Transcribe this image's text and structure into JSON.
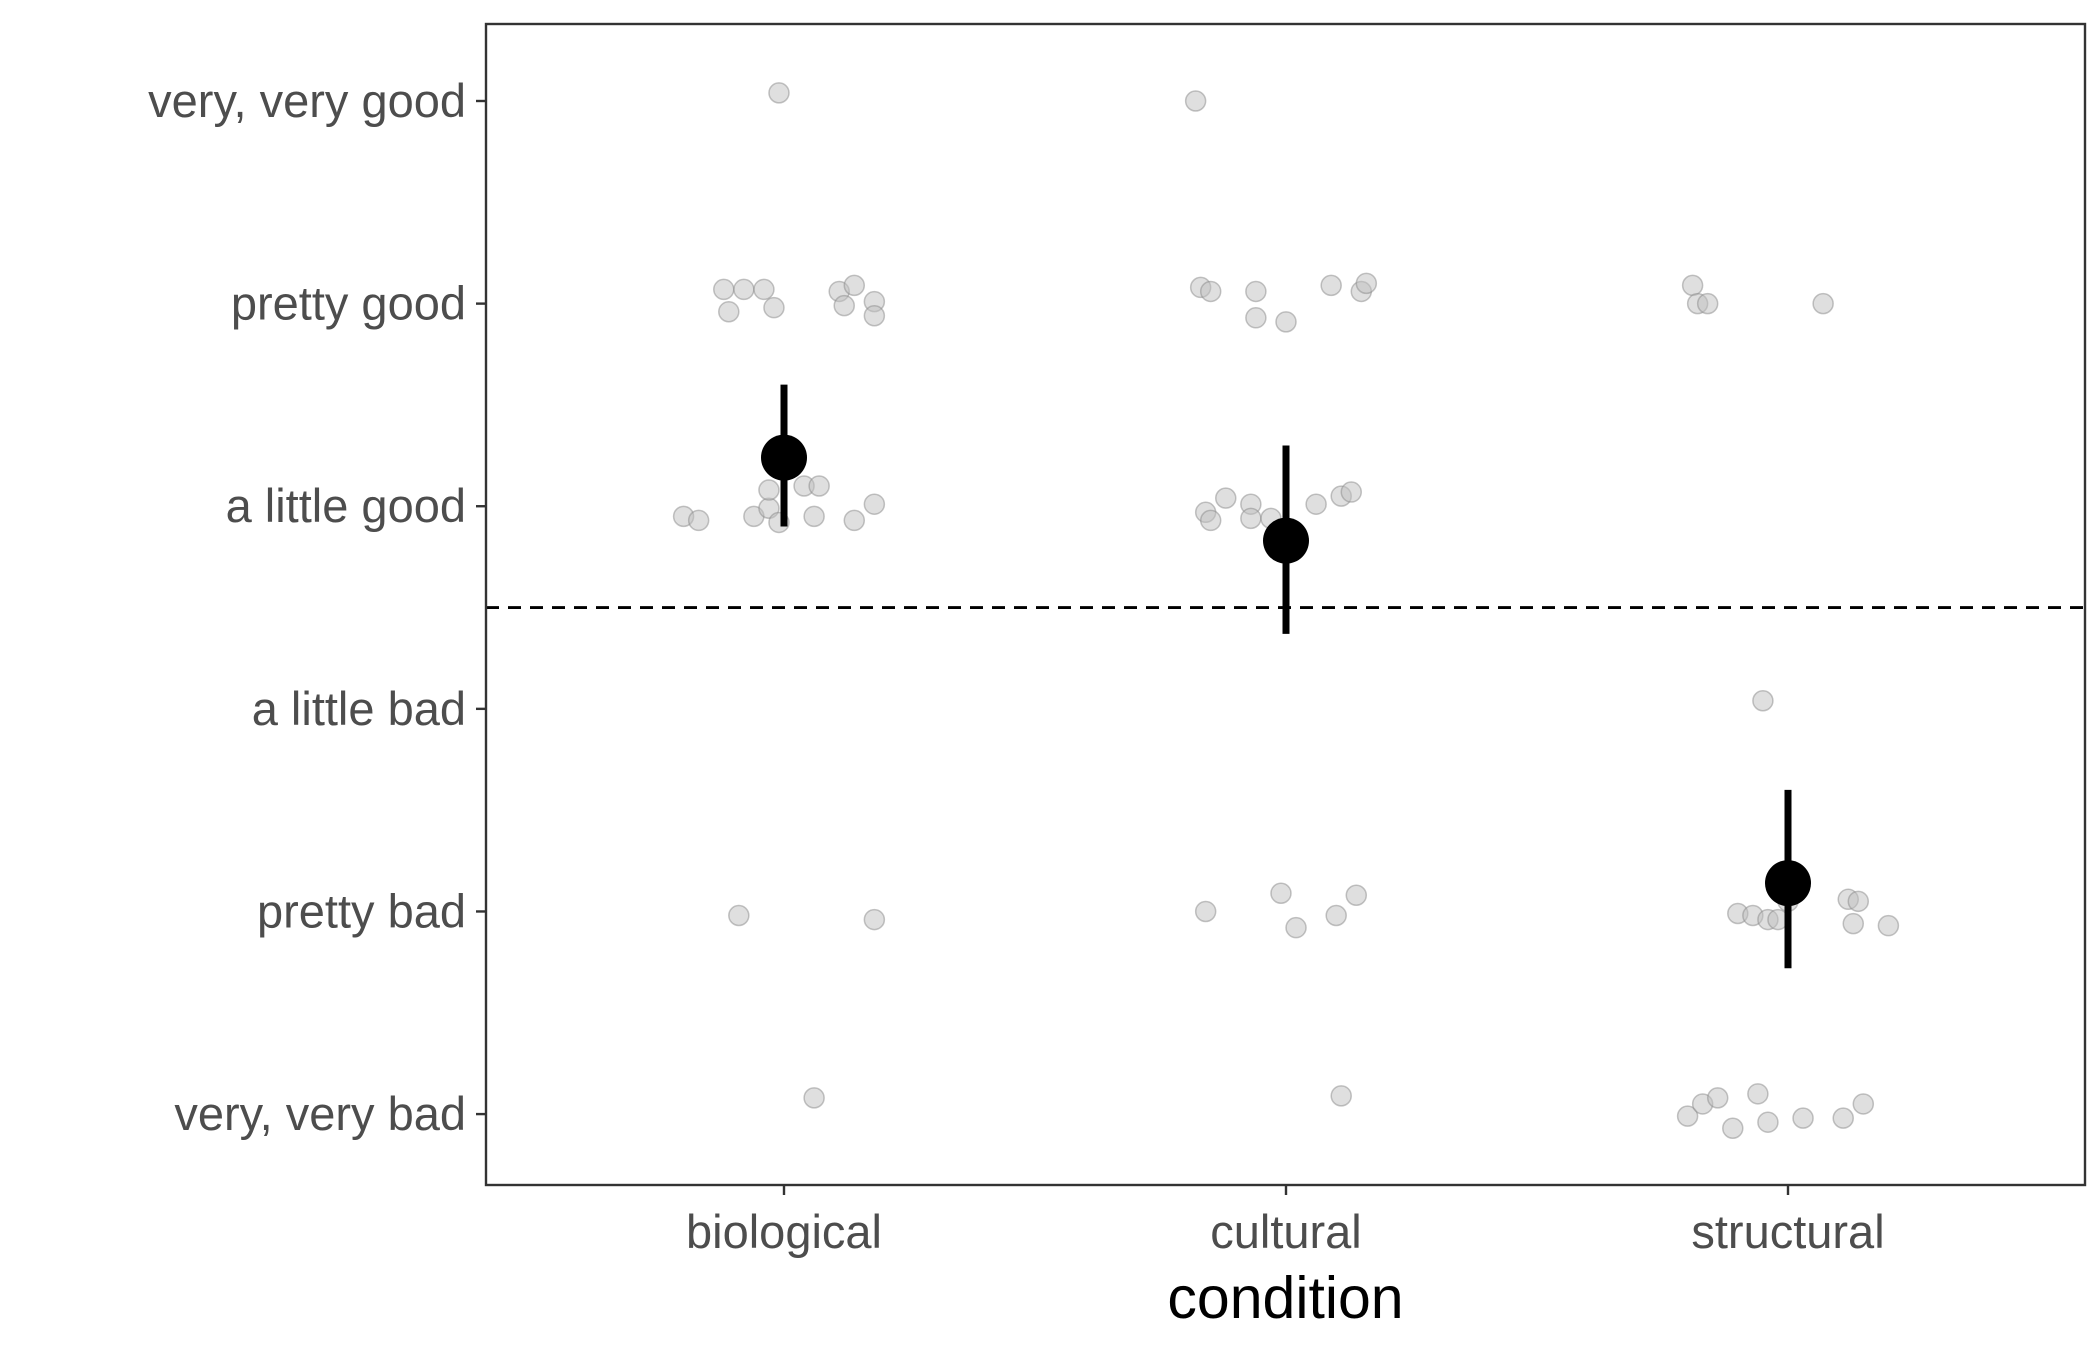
{
  "chart_data": {
    "type": "scatter",
    "title": "",
    "xlabel": "condition",
    "ylabel": "",
    "categories": [
      "biological",
      "cultural",
      "structural"
    ],
    "y_ticks": [
      {
        "value": 1,
        "label": "very, very bad"
      },
      {
        "value": 2,
        "label": "pretty bad"
      },
      {
        "value": 3,
        "label": "a little bad"
      },
      {
        "value": 4,
        "label": "a little good"
      },
      {
        "value": 5,
        "label": "pretty good"
      },
      {
        "value": 6,
        "label": "very, very good"
      }
    ],
    "ylim": [
      0.65,
      6.38
    ],
    "reference_line": {
      "y": 3.5,
      "style": "dashed"
    },
    "grid": false,
    "points": [
      {
        "category": "biological",
        "jitter": -0.01,
        "y": 6.04
      },
      {
        "category": "biological",
        "jitter": -0.12,
        "y": 5.07
      },
      {
        "category": "biological",
        "jitter": -0.08,
        "y": 5.07
      },
      {
        "category": "biological",
        "jitter": -0.04,
        "y": 5.07
      },
      {
        "category": "biological",
        "jitter": -0.11,
        "y": 4.96
      },
      {
        "category": "biological",
        "jitter": -0.02,
        "y": 4.98
      },
      {
        "category": "biological",
        "jitter": 0.11,
        "y": 5.06
      },
      {
        "category": "biological",
        "jitter": 0.14,
        "y": 5.09
      },
      {
        "category": "biological",
        "jitter": 0.12,
        "y": 4.99
      },
      {
        "category": "biological",
        "jitter": 0.18,
        "y": 5.01
      },
      {
        "category": "biological",
        "jitter": 0.18,
        "y": 4.94
      },
      {
        "category": "biological",
        "jitter": -0.2,
        "y": 3.95
      },
      {
        "category": "biological",
        "jitter": -0.17,
        "y": 3.93
      },
      {
        "category": "biological",
        "jitter": -0.06,
        "y": 3.95
      },
      {
        "category": "biological",
        "jitter": -0.03,
        "y": 3.99
      },
      {
        "category": "biological",
        "jitter": -0.03,
        "y": 4.08
      },
      {
        "category": "biological",
        "jitter": -0.01,
        "y": 3.92
      },
      {
        "category": "biological",
        "jitter": 0.04,
        "y": 4.1
      },
      {
        "category": "biological",
        "jitter": 0.07,
        "y": 4.1
      },
      {
        "category": "biological",
        "jitter": 0.06,
        "y": 3.95
      },
      {
        "category": "biological",
        "jitter": 0.14,
        "y": 3.93
      },
      {
        "category": "biological",
        "jitter": 0.18,
        "y": 4.01
      },
      {
        "category": "biological",
        "jitter": -0.09,
        "y": 1.98
      },
      {
        "category": "biological",
        "jitter": 0.18,
        "y": 1.96
      },
      {
        "category": "biological",
        "jitter": 0.06,
        "y": 1.08
      },
      {
        "category": "cultural",
        "jitter": -0.18,
        "y": 6.0
      },
      {
        "category": "cultural",
        "jitter": -0.17,
        "y": 5.08
      },
      {
        "category": "cultural",
        "jitter": -0.15,
        "y": 5.06
      },
      {
        "category": "cultural",
        "jitter": -0.06,
        "y": 5.06
      },
      {
        "category": "cultural",
        "jitter": -0.06,
        "y": 4.93
      },
      {
        "category": "cultural",
        "jitter": 0.0,
        "y": 4.91
      },
      {
        "category": "cultural",
        "jitter": 0.09,
        "y": 5.09
      },
      {
        "category": "cultural",
        "jitter": 0.15,
        "y": 5.06
      },
      {
        "category": "cultural",
        "jitter": 0.16,
        "y": 5.1
      },
      {
        "category": "cultural",
        "jitter": -0.16,
        "y": 3.97
      },
      {
        "category": "cultural",
        "jitter": -0.15,
        "y": 3.93
      },
      {
        "category": "cultural",
        "jitter": -0.12,
        "y": 4.04
      },
      {
        "category": "cultural",
        "jitter": -0.07,
        "y": 4.01
      },
      {
        "category": "cultural",
        "jitter": -0.07,
        "y": 3.94
      },
      {
        "category": "cultural",
        "jitter": -0.03,
        "y": 3.94
      },
      {
        "category": "cultural",
        "jitter": 0.06,
        "y": 4.01
      },
      {
        "category": "cultural",
        "jitter": 0.11,
        "y": 4.05
      },
      {
        "category": "cultural",
        "jitter": 0.13,
        "y": 4.07
      },
      {
        "category": "cultural",
        "jitter": -0.16,
        "y": 2.0
      },
      {
        "category": "cultural",
        "jitter": -0.01,
        "y": 2.09
      },
      {
        "category": "cultural",
        "jitter": 0.02,
        "y": 1.92
      },
      {
        "category": "cultural",
        "jitter": 0.1,
        "y": 1.98
      },
      {
        "category": "cultural",
        "jitter": 0.14,
        "y": 2.08
      },
      {
        "category": "cultural",
        "jitter": 0.11,
        "y": 1.09
      },
      {
        "category": "structural",
        "jitter": -0.19,
        "y": 5.09
      },
      {
        "category": "structural",
        "jitter": -0.18,
        "y": 5.0
      },
      {
        "category": "structural",
        "jitter": -0.16,
        "y": 5.0
      },
      {
        "category": "structural",
        "jitter": 0.07,
        "y": 5.0
      },
      {
        "category": "structural",
        "jitter": -0.05,
        "y": 3.04
      },
      {
        "category": "structural",
        "jitter": -0.1,
        "y": 1.99
      },
      {
        "category": "structural",
        "jitter": -0.07,
        "y": 1.98
      },
      {
        "category": "structural",
        "jitter": -0.04,
        "y": 1.96
      },
      {
        "category": "structural",
        "jitter": -0.02,
        "y": 1.96
      },
      {
        "category": "structural",
        "jitter": 0.0,
        "y": 2.05
      },
      {
        "category": "structural",
        "jitter": 0.12,
        "y": 2.06
      },
      {
        "category": "structural",
        "jitter": 0.14,
        "y": 2.05
      },
      {
        "category": "structural",
        "jitter": 0.13,
        "y": 1.94
      },
      {
        "category": "structural",
        "jitter": 0.2,
        "y": 1.93
      },
      {
        "category": "structural",
        "jitter": -0.2,
        "y": 0.99
      },
      {
        "category": "structural",
        "jitter": -0.17,
        "y": 1.05
      },
      {
        "category": "structural",
        "jitter": -0.14,
        "y": 1.08
      },
      {
        "category": "structural",
        "jitter": -0.11,
        "y": 0.93
      },
      {
        "category": "structural",
        "jitter": -0.06,
        "y": 1.1
      },
      {
        "category": "structural",
        "jitter": -0.04,
        "y": 0.96
      },
      {
        "category": "structural",
        "jitter": 0.03,
        "y": 0.98
      },
      {
        "category": "structural",
        "jitter": 0.11,
        "y": 0.98
      },
      {
        "category": "structural",
        "jitter": 0.15,
        "y": 1.05
      }
    ],
    "summary": [
      {
        "category": "biological",
        "mean": 4.24,
        "ci": [
          3.9,
          4.6
        ]
      },
      {
        "category": "cultural",
        "mean": 3.83,
        "ci": [
          3.37,
          4.3
        ]
      },
      {
        "category": "structural",
        "mean": 2.14,
        "ci": [
          1.72,
          2.6
        ]
      }
    ],
    "colors": {
      "point_fill": "#bfbfbf",
      "point_stroke": "#8a8a8a",
      "summary": "#000000",
      "panel_border": "#333333"
    }
  }
}
